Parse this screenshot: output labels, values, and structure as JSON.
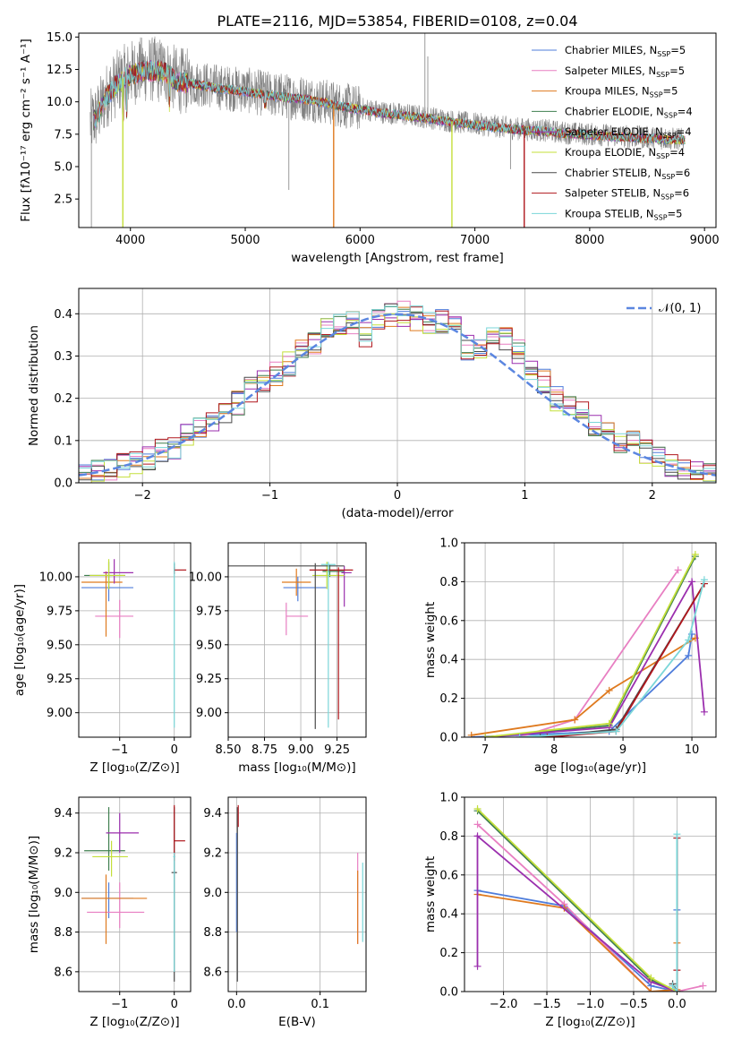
{
  "colors": {
    "Chabrier MILES": "#4f7ddb",
    "Salpeter MILES": "#e87fc2",
    "Kroupa MILES": "#df7a1f",
    "Chabrier ELODIE": "#3f7f4f",
    "Salpeter ELODIE": "#9b2fae",
    "Kroupa ELODIE": "#c4df3a",
    "Chabrier STELIB": "#4a4a4a",
    "Salpeter STELIB": "#b0171d",
    "Kroupa STELIB": "#7ad6d8",
    "data": "#808080",
    "gauss": "#5b86e0"
  },
  "chart_data": [
    {
      "id": "spectrum",
      "type": "line",
      "title": "PLATE=2116, MJD=53854, FIBERID=0108, z=0.04",
      "xlabel": "wavelength [Angstrom, rest frame]",
      "ylabel": "Flux [fλ10⁻¹⁷ erg cm⁻² s⁻¹ A⁻¹]",
      "xlim": [
        3550,
        9100
      ],
      "ylim": [
        0.3,
        15.3
      ],
      "xticks": [
        4000,
        5000,
        6000,
        7000,
        8000,
        9000
      ],
      "yticks": [
        2.5,
        5.0,
        7.5,
        10.0,
        12.5,
        15.0
      ],
      "grid": false,
      "legend_position": "top-right",
      "legend": [
        {
          "name": "Chabrier MILES",
          "nssp": "=5"
        },
        {
          "name": "Salpeter MILES",
          "nssp": "=5"
        },
        {
          "name": "Kroupa MILES",
          "nssp": "=5"
        },
        {
          "name": "Chabrier ELODIE",
          "nssp": "=4"
        },
        {
          "name": "Salpeter ELODIE",
          "nssp": "=4"
        },
        {
          "name": "Kroupa ELODIE",
          "nssp": "=4"
        },
        {
          "name": "Chabrier STELIB",
          "nssp": "=6"
        },
        {
          "name": "Salpeter STELIB",
          "nssp": "=6"
        },
        {
          "name": "Kroupa STELIB",
          "nssp": "=5"
        }
      ],
      "continuum": {
        "x": [
          3650,
          3700,
          3800,
          3900,
          4000,
          4100,
          4200,
          4300,
          4400,
          4600,
          4800,
          5000,
          5200,
          5400,
          5600,
          5800,
          6000,
          6200,
          6400,
          6600,
          6800,
          7000,
          7200,
          7400,
          7600,
          7800,
          8000,
          8200,
          8400,
          8600,
          8820
        ],
        "y": [
          8.4,
          8.8,
          10.6,
          11.6,
          12.2,
          12.5,
          12.5,
          12.4,
          11.7,
          11.4,
          11.1,
          10.9,
          10.6,
          10.4,
          10.2,
          9.8,
          9.5,
          9.2,
          9.0,
          8.8,
          8.5,
          8.3,
          8.1,
          7.9,
          7.8,
          7.6,
          7.5,
          7.4,
          7.3,
          7.2,
          7.1
        ]
      },
      "model_dips": [
        {
          "x": 3934,
          "y": 0.3,
          "series": "Kroupa ELODIE"
        },
        {
          "x": 5770,
          "y": 0.3,
          "series": "Kroupa MILES"
        },
        {
          "x": 6800,
          "y": 0.3,
          "series": "Kroupa ELODIE"
        },
        {
          "x": 7430,
          "y": 0.3,
          "series": "Salpeter STELIB"
        }
      ],
      "data_spikes": [
        {
          "x": 3660,
          "y": 0.3
        },
        {
          "x": 5380,
          "y": 3.2
        },
        {
          "x": 6565,
          "y": 15.3
        },
        {
          "x": 6590,
          "y": 13.5
        },
        {
          "x": 7310,
          "y": 4.8
        }
      ]
    },
    {
      "id": "residuals",
      "type": "histogram",
      "title": "",
      "xlabel": "(data-model)/error",
      "ylabel": "Normed distribution",
      "xlim": [
        -2.5,
        2.5
      ],
      "ylim": [
        0,
        0.46
      ],
      "xticks": [
        -2,
        -1,
        0,
        1,
        2
      ],
      "yticks": [
        0.0,
        0.1,
        0.2,
        0.3,
        0.4
      ],
      "grid": true,
      "legend_position": "top-right",
      "legend": [
        {
          "name": "𝒩(0, 1)"
        }
      ],
      "bin_edges": [
        -2.5,
        -2.4,
        -2.3,
        -2.2,
        -2.1,
        -2.0,
        -1.9,
        -1.8,
        -1.7,
        -1.6,
        -1.5,
        -1.4,
        -1.3,
        -1.2,
        -1.1,
        -1.0,
        -0.9,
        -0.8,
        -0.7,
        -0.6,
        -0.5,
        -0.4,
        -0.3,
        -0.2,
        -0.1,
        0.0,
        0.1,
        0.2,
        0.3,
        0.4,
        0.5,
        0.6,
        0.7,
        0.8,
        0.9,
        1.0,
        1.1,
        1.2,
        1.3,
        1.4,
        1.5,
        1.6,
        1.7,
        1.8,
        1.9,
        2.0,
        2.1,
        2.2,
        2.3,
        2.4,
        2.5
      ],
      "mean_hist": [
        0.02,
        0.025,
        0.035,
        0.04,
        0.045,
        0.06,
        0.075,
        0.085,
        0.11,
        0.13,
        0.15,
        0.17,
        0.19,
        0.22,
        0.24,
        0.26,
        0.28,
        0.31,
        0.33,
        0.36,
        0.37,
        0.38,
        0.35,
        0.38,
        0.4,
        0.4,
        0.39,
        0.38,
        0.38,
        0.37,
        0.32,
        0.31,
        0.34,
        0.34,
        0.31,
        0.27,
        0.24,
        0.2,
        0.19,
        0.17,
        0.14,
        0.12,
        0.1,
        0.095,
        0.075,
        0.055,
        0.045,
        0.035,
        0.03,
        0.02
      ],
      "gaussian": {
        "mu": 0,
        "sigma": 1
      }
    },
    {
      "id": "age_vs_Z",
      "type": "errorbar",
      "xlabel": "Z [log₁₀(Z/Z⊙)]",
      "ylabel": "age  [log₁₀(age/yr)]",
      "xlim": [
        -1.75,
        0.3
      ],
      "ylim": [
        8.82,
        10.25
      ],
      "xticks": [
        -1,
        0
      ],
      "yticks": [
        9.0,
        9.25,
        9.5,
        9.75,
        10.0
      ],
      "grid": true,
      "points": [
        {
          "series": "Chabrier MILES",
          "x": -1.2,
          "y": 9.92,
          "xl": 0.5,
          "xh": 0.45,
          "yl": 0.1,
          "yh": 0.1
        },
        {
          "series": "Salpeter MILES",
          "x": -1.0,
          "y": 9.71,
          "xl": 0.45,
          "xh": 0.25,
          "yl": 0.16,
          "yh": 0.12
        },
        {
          "series": "Kroupa MILES",
          "x": -1.25,
          "y": 9.96,
          "xl": 0.45,
          "xh": 0.3,
          "yl": 0.4,
          "yh": 0.08
        },
        {
          "series": "Chabrier ELODIE",
          "x": -1.2,
          "y": 10.01,
          "xl": 0.45,
          "xh": 0.3,
          "yl": 0.1,
          "yh": 0.1
        },
        {
          "series": "Salpeter ELODIE",
          "x": -1.1,
          "y": 10.03,
          "xl": 0.2,
          "xh": 0.35,
          "yl": 0.08,
          "yh": 0.1
        },
        {
          "series": "Kroupa ELODIE",
          "x": -1.2,
          "y": 10.01,
          "xl": 0.35,
          "xh": 0.3,
          "yl": 0.1,
          "yh": 0.12
        },
        {
          "series": "Chabrier STELIB",
          "x": 0.0,
          "y": 10.08,
          "xl": 0.0,
          "xh": 0.0,
          "yl": 0.04,
          "yh": 0.02
        },
        {
          "series": "Salpeter STELIB",
          "x": 0.0,
          "y": 10.05,
          "xl": 0.0,
          "xh": 0.22,
          "yl": 0.03,
          "yh": 0.02
        },
        {
          "series": "Kroupa STELIB",
          "x": 0.0,
          "y": 10.09,
          "xl": 0.0,
          "xh": 0.0,
          "yl": 1.2,
          "yh": 0.02
        }
      ]
    },
    {
      "id": "age_vs_mass",
      "type": "errorbar",
      "xlabel": "mass [log₁₀(M/M⊙)]",
      "ylabel": "",
      "xlim": [
        8.5,
        9.45
      ],
      "ylim": [
        8.82,
        10.25
      ],
      "xticks": [
        8.5,
        8.75,
        9.0,
        9.25
      ],
      "xtick_labels": [
        "8.50",
        "8.75",
        "9.00",
        "9.25"
      ],
      "yticks": [
        9.0,
        9.25,
        9.5,
        9.75,
        10.0
      ],
      "grid": true,
      "points": [
        {
          "series": "Chabrier MILES",
          "x": 8.98,
          "y": 9.92,
          "xl": 0.1,
          "xh": 0.2,
          "yl": 0.1,
          "yh": 0.08
        },
        {
          "series": "Salpeter MILES",
          "x": 8.9,
          "y": 9.71,
          "xl": 0.0,
          "xh": 0.15,
          "yl": 0.14,
          "yh": 0.1
        },
        {
          "series": "Kroupa MILES",
          "x": 8.97,
          "y": 9.96,
          "xl": 0.1,
          "xh": 0.1,
          "yl": 0.1,
          "yh": 0.1
        },
        {
          "series": "Chabrier ELODIE",
          "x": 9.2,
          "y": 10.04,
          "xl": 0.05,
          "xh": 0.1,
          "yl": 0.04,
          "yh": 0.05
        },
        {
          "series": "Salpeter ELODIE",
          "x": 9.3,
          "y": 10.03,
          "xl": 0.02,
          "xh": 0.05,
          "yl": 0.25,
          "yh": 0.05
        },
        {
          "series": "Kroupa ELODIE",
          "x": 9.18,
          "y": 10.01,
          "xl": 0.1,
          "xh": 0.12,
          "yl": 0.1,
          "yh": 0.1
        },
        {
          "series": "Chabrier STELIB",
          "x": 9.1,
          "y": 10.08,
          "xl": 0.6,
          "xh": 0.2,
          "yl": 1.2,
          "yh": 0.02
        },
        {
          "series": "Salpeter STELIB",
          "x": 9.26,
          "y": 10.05,
          "xl": 0.2,
          "xh": 0.1,
          "yl": 1.1,
          "yh": 0.02
        },
        {
          "series": "Kroupa STELIB",
          "x": 9.19,
          "y": 10.09,
          "xl": 0.05,
          "xh": 0.05,
          "yl": 1.2,
          "yh": 0.02
        }
      ]
    },
    {
      "id": "massweight_vs_age",
      "type": "line",
      "xlabel": "age  [log₁₀(age/yr)]",
      "ylabel": "mass weight",
      "xlim": [
        6.7,
        10.35
      ],
      "ylim": [
        0,
        1.0
      ],
      "xticks": [
        7,
        8,
        9,
        10
      ],
      "yticks": [
        0.0,
        0.2,
        0.4,
        0.6,
        0.8,
        1.0
      ],
      "grid": true,
      "series": [
        {
          "name": "Chabrier MILES",
          "x": [
            6.8,
            8.8,
            9.95,
            10.0
          ],
          "y": [
            0.0,
            0.03,
            0.42,
            0.53
          ]
        },
        {
          "name": "Salpeter MILES",
          "x": [
            7.5,
            8.3,
            9.8
          ],
          "y": [
            0.0,
            0.09,
            0.86
          ]
        },
        {
          "name": "Kroupa MILES",
          "x": [
            6.8,
            8.3,
            8.8,
            10.05
          ],
          "y": [
            0.01,
            0.09,
            0.24,
            0.51
          ]
        },
        {
          "name": "Chabrier ELODIE",
          "x": [
            7.0,
            8.8,
            10.05
          ],
          "y": [
            0.0,
            0.06,
            0.93
          ]
        },
        {
          "name": "Salpeter ELODIE",
          "x": [
            7.0,
            8.8,
            10.0,
            10.18
          ],
          "y": [
            0.0,
            0.05,
            0.8,
            0.13
          ]
        },
        {
          "name": "Kroupa ELODIE",
          "x": [
            7.0,
            8.8,
            10.05
          ],
          "y": [
            0.0,
            0.07,
            0.94
          ]
        },
        {
          "name": "Chabrier STELIB",
          "x": [
            7.8,
            8.9,
            10.18
          ],
          "y": [
            0.0,
            0.04,
            0.79
          ]
        },
        {
          "name": "Salpeter STELIB",
          "x": [
            7.9,
            8.9,
            10.18
          ],
          "y": [
            0.0,
            0.03,
            0.79
          ]
        },
        {
          "name": "Kroupa STELIB",
          "x": [
            7.5,
            8.9,
            9.95,
            10.18
          ],
          "y": [
            0.0,
            0.03,
            0.5,
            0.81
          ]
        }
      ]
    },
    {
      "id": "mass_vs_Z",
      "type": "errorbar",
      "xlabel": "Z [log₁₀(Z/Z⊙)]",
      "ylabel": "mass [log₁₀(M/M⊙)]",
      "xlim": [
        -1.75,
        0.3
      ],
      "ylim": [
        8.5,
        9.48
      ],
      "xticks": [
        -1,
        0
      ],
      "yticks": [
        8.6,
        8.8,
        9.0,
        9.2,
        9.4
      ],
      "grid": true,
      "points": [
        {
          "series": "Chabrier MILES",
          "x": -1.2,
          "y": 8.97,
          "xl": 0.5,
          "xh": 0.45,
          "yl": 0.1,
          "yh": 0.08
        },
        {
          "series": "Salpeter MILES",
          "x": -1.0,
          "y": 8.9,
          "xl": 0.6,
          "xh": 0.45,
          "yl": 0.08,
          "yh": 0.15
        },
        {
          "series": "Kroupa MILES",
          "x": -1.25,
          "y": 8.97,
          "xl": 0.45,
          "xh": 0.75,
          "yl": 0.23,
          "yh": 0.12
        },
        {
          "series": "Chabrier ELODIE",
          "x": -1.2,
          "y": 9.21,
          "xl": 0.45,
          "xh": 0.3,
          "yl": 0.1,
          "yh": 0.22
        },
        {
          "series": "Salpeter ELODIE",
          "x": -1.0,
          "y": 9.3,
          "xl": 0.25,
          "xh": 0.35,
          "yl": 0.1,
          "yh": 0.1
        },
        {
          "series": "Kroupa ELODIE",
          "x": -1.15,
          "y": 9.18,
          "xl": 0.35,
          "xh": 0.3,
          "yl": 0.1,
          "yh": 0.08
        },
        {
          "series": "Chabrier STELIB",
          "x": 0.0,
          "y": 9.1,
          "xl": 0.05,
          "xh": 0.05,
          "yl": 0.55,
          "yh": 0.33
        },
        {
          "series": "Salpeter STELIB",
          "x": 0.0,
          "y": 9.26,
          "xl": 0.0,
          "xh": 0.2,
          "yl": 0.1,
          "yh": 0.18
        },
        {
          "series": "Kroupa STELIB",
          "x": 0.0,
          "y": 9.18,
          "xl": 0.02,
          "xh": 0.02,
          "yl": 0.58,
          "yh": 0.02
        }
      ]
    },
    {
      "id": "mass_vs_EBV",
      "type": "errorbar",
      "xlabel": "E(B-V)",
      "ylabel": "",
      "xlim": [
        -0.01,
        0.155
      ],
      "ylim": [
        8.5,
        9.48
      ],
      "xticks": [
        0.0,
        0.1
      ],
      "yticks": [
        8.6,
        8.8,
        9.0,
        9.2,
        9.4
      ],
      "grid": true,
      "points": [
        {
          "series": "Chabrier MILES",
          "x": 0.0,
          "y": 9.1,
          "xl": 0.0,
          "xh": 0.0,
          "yl": 0.3,
          "yh": 0.2
        },
        {
          "series": "Salpeter MILES",
          "x": 0.145,
          "y": 9.0,
          "xl": 0.0,
          "xh": 0.0,
          "yl": 0.26,
          "yh": 0.2
        },
        {
          "series": "Kroupa MILES",
          "x": 0.145,
          "y": 8.97,
          "xl": 0.0,
          "xh": 0.0,
          "yl": 0.23,
          "yh": 0.14
        },
        {
          "series": "Chabrier STELIB",
          "x": 0.001,
          "y": 9.1,
          "xl": 0.0,
          "xh": 0.0,
          "yl": 0.55,
          "yh": 0.33
        },
        {
          "series": "Salpeter STELIB",
          "x": 0.002,
          "y": 9.38,
          "xl": 0.0,
          "xh": 0.0,
          "yl": 0.05,
          "yh": 0.06
        },
        {
          "series": "Kroupa STELIB",
          "x": 0.151,
          "y": 8.95,
          "xl": 0.0,
          "xh": 0.0,
          "yl": 0.2,
          "yh": 0.2
        }
      ]
    },
    {
      "id": "massweight_vs_Z",
      "type": "line",
      "xlabel": "Z [log₁₀(Z/Z⊙)]",
      "ylabel": "mass weight",
      "xlim": [
        -2.45,
        0.45
      ],
      "ylim": [
        0,
        1.0
      ],
      "xticks": [
        -2.0,
        -1.5,
        -1.0,
        -0.5,
        0.0
      ],
      "yticks": [
        0.0,
        0.2,
        0.4,
        0.6,
        0.8,
        1.0
      ],
      "grid": true,
      "series": [
        {
          "name": "Chabrier MILES",
          "x": [
            -2.3,
            -1.3,
            -0.3,
            0.0,
            0.0
          ],
          "y": [
            0.52,
            0.44,
            0.03,
            0.0,
            0.42
          ]
        },
        {
          "name": "Salpeter MILES",
          "x": [
            -2.3,
            -1.3,
            -0.3,
            0.0,
            0.3
          ],
          "y": [
            0.86,
            0.45,
            0.0,
            0.0,
            0.03
          ]
        },
        {
          "name": "Kroupa MILES",
          "x": [
            -2.3,
            -1.3,
            -0.3,
            0.0,
            0.0
          ],
          "y": [
            0.5,
            0.43,
            0.0,
            0.01,
            0.25
          ]
        },
        {
          "name": "Chabrier ELODIE",
          "x": [
            -2.3,
            -0.3,
            0.0,
            0.0
          ],
          "y": [
            0.93,
            0.06,
            0.0,
            0.0
          ]
        },
        {
          "name": "Salpeter ELODIE",
          "x": [
            -2.3,
            -2.3,
            -0.3,
            0.0
          ],
          "y": [
            0.13,
            0.8,
            0.05,
            0.0
          ]
        },
        {
          "name": "Kroupa ELODIE",
          "x": [
            -2.3,
            -0.3,
            0.0,
            0.0
          ],
          "y": [
            0.94,
            0.07,
            0.0,
            0.0
          ]
        },
        {
          "name": "Chabrier STELIB",
          "x": [
            -0.05,
            0.0,
            0.0
          ],
          "y": [
            0.04,
            0.0,
            0.79
          ]
        },
        {
          "name": "Salpeter STELIB",
          "x": [
            -0.05,
            0.0,
            0.0,
            0.0
          ],
          "y": [
            0.03,
            0.0,
            0.79,
            0.11
          ]
        },
        {
          "name": "Kroupa STELIB",
          "x": [
            -0.05,
            0.0,
            0.0
          ],
          "y": [
            0.03,
            0.0,
            0.81
          ]
        }
      ]
    }
  ]
}
